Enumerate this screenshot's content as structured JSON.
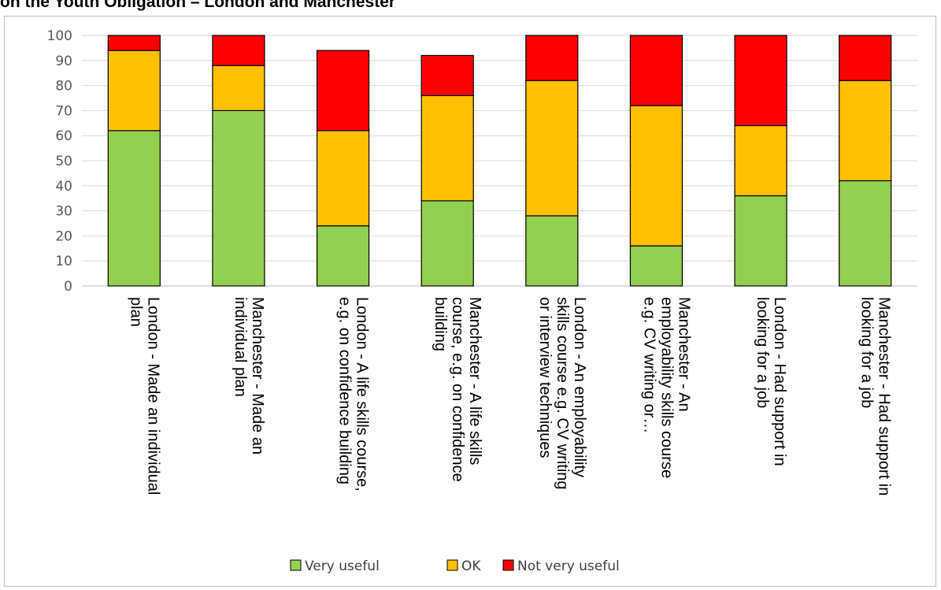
{
  "header": {
    "title": "on the Youth Obligation – London and Manchester"
  },
  "chart_data": {
    "type": "bar",
    "stacked": true,
    "title": "",
    "xlabel": "",
    "ylabel": "",
    "ylim": [
      0,
      100
    ],
    "yticks": [
      0,
      10,
      20,
      30,
      40,
      50,
      60,
      70,
      80,
      90,
      100
    ],
    "grid": true,
    "legend_position": "bottom",
    "categories": [
      [
        "London - Made an individual",
        "plan"
      ],
      [
        "Manchester - Made an",
        "individual plan"
      ],
      [
        "London - A life skills course,",
        "e.g. on confidence building"
      ],
      [
        "Manchester - A life skills",
        "course, e.g. on confidence",
        "building"
      ],
      [
        "London - An employability",
        "skills course e.g. CV writing",
        "or interview techniques"
      ],
      [
        "Manchester - An",
        "employability skills course",
        "e.g. CV writing or…"
      ],
      [
        "London - Had support in",
        "looking for a job"
      ],
      [
        "Manchester - Had support in",
        "looking for a job"
      ]
    ],
    "series": [
      {
        "name": "Very useful",
        "color": "#92d050",
        "values": [
          62,
          70,
          24,
          34,
          28,
          16,
          36,
          42
        ]
      },
      {
        "name": "OK",
        "color": "#ffc000",
        "values": [
          32,
          18,
          38,
          42,
          54,
          56,
          28,
          40
        ]
      },
      {
        "name": "Not very useful",
        "color": "#ff0000",
        "values": [
          6,
          12,
          32,
          16,
          18,
          28,
          36,
          18
        ]
      }
    ]
  }
}
